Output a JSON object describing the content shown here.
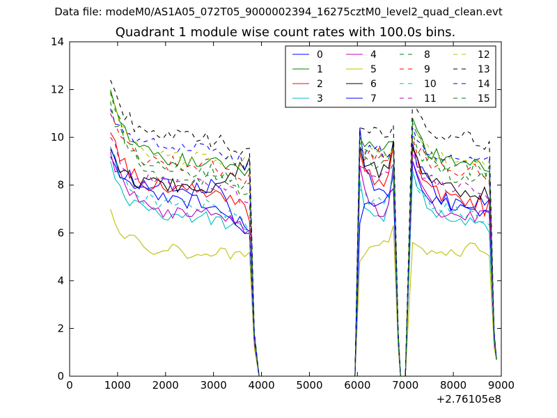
{
  "figure": {
    "suptitle": "Data file: modeM0/AS1A05_072T05_9000002394_16275cztM0_level2_quad_clean.evt"
  },
  "chart_data": {
    "type": "line",
    "title": "Quadrant 1 module wise count rates with 100.0s bins.",
    "xlabel": "",
    "ylabel": "",
    "x_offset_label": "+2.76105e8",
    "xlim": [
      0,
      9000
    ],
    "ylim": [
      0,
      14
    ],
    "xticks": [
      0,
      1000,
      2000,
      3000,
      4000,
      5000,
      6000,
      7000,
      8000,
      9000
    ],
    "yticks": [
      0,
      2,
      4,
      6,
      8,
      10,
      12,
      14
    ],
    "grid": false,
    "legend_position": "top-right",
    "legend_columns": 4,
    "segments": [
      {
        "name": "block1",
        "x_start": 850,
        "x_end": 3750,
        "step": 100,
        "t1": 3850,
        "t2": 3950,
        "x_after": [
          4000,
          4500,
          5000,
          5500,
          5950
        ]
      },
      {
        "name": "block2",
        "x_start": 6050,
        "x_end": 6750,
        "step": 100,
        "t1": 6850,
        "t2": 6900,
        "x_after": [
          6900,
          7000
        ]
      },
      {
        "name": "block3",
        "x_start": 7150,
        "x_end": 8750,
        "step": 100,
        "t1": 8850,
        "t2": 8900,
        "x_after": []
      }
    ],
    "series": [
      {
        "name": "0",
        "color": "#0000ff",
        "dash": "solid",
        "start": [
          9.2,
          10.4,
          9.8
        ],
        "level": [
          7.9,
          7.6,
          7.2
        ],
        "end": [
          5.8,
          8.2,
          7.4
        ],
        "jitter": 0.35,
        "t1": 1.5,
        "t2": 0.7
      },
      {
        "name": "1",
        "color": "#008000",
        "dash": "solid",
        "start": [
          12.0,
          10.0,
          10.8
        ],
        "level": [
          9.0,
          9.4,
          9.0
        ],
        "end": [
          8.6,
          9.9,
          8.6
        ],
        "jitter": 0.35,
        "t1": 1.7,
        "t2": 0.7
      },
      {
        "name": "2",
        "color": "#ff0000",
        "dash": "solid",
        "start": [
          10.2,
          9.4,
          9.5
        ],
        "level": [
          7.8,
          8.0,
          7.3
        ],
        "end": [
          6.8,
          9.6,
          7.0
        ],
        "jitter": 0.4,
        "t1": 1.6,
        "t2": 0.7
      },
      {
        "name": "3",
        "color": "#00bfbf",
        "dash": "solid",
        "start": [
          9.0,
          8.2,
          8.6
        ],
        "level": [
          6.6,
          6.7,
          6.5
        ],
        "end": [
          6.1,
          8.6,
          6.2
        ],
        "jitter": 0.3,
        "t1": 1.4,
        "t2": 0.7
      },
      {
        "name": "4",
        "color": "#bf00bf",
        "dash": "solid",
        "start": [
          9.4,
          8.8,
          9.0
        ],
        "level": [
          6.8,
          6.9,
          6.7
        ],
        "end": [
          6.0,
          8.9,
          6.6
        ],
        "jitter": 0.3,
        "t1": 1.4,
        "t2": 0.7
      },
      {
        "name": "5",
        "color": "#bfbf00",
        "dash": "solid",
        "start": [
          7.0,
          4.8,
          5.6
        ],
        "level": [
          5.2,
          5.6,
          5.3
        ],
        "end": [
          4.9,
          6.4,
          5.3
        ],
        "jitter": 0.3,
        "t1": 1.2,
        "t2": 0.7
      },
      {
        "name": "6",
        "color": "#000000",
        "dash": "solid",
        "start": [
          9.5,
          9.6,
          9.6
        ],
        "level": [
          7.9,
          8.6,
          7.8
        ],
        "end": [
          9.0,
          10.0,
          7.6
        ],
        "jitter": 0.35,
        "t1": 1.6,
        "t2": 0.7
      },
      {
        "name": "7",
        "color": "#0000ff",
        "dash": "solid",
        "start": [
          9.6,
          6.4,
          9.0
        ],
        "level": [
          7.3,
          7.4,
          7.1
        ],
        "end": [
          5.8,
          8.0,
          6.6
        ],
        "jitter": 0.3,
        "t1": 1.5,
        "t2": 0.7
      },
      {
        "name": "8",
        "color": "#008000",
        "dash": "dashed",
        "start": [
          11.5,
          9.8,
          10.2
        ],
        "level": [
          8.3,
          8.8,
          8.4
        ],
        "end": [
          7.6,
          9.4,
          8.1
        ],
        "jitter": 0.35,
        "t1": 1.7,
        "t2": 0.7
      },
      {
        "name": "9",
        "color": "#ff0000",
        "dash": "dashed",
        "start": [
          11.0,
          9.2,
          10.0
        ],
        "level": [
          8.8,
          9.2,
          8.6
        ],
        "end": [
          8.2,
          9.7,
          8.4
        ],
        "jitter": 0.35,
        "t1": 1.7,
        "t2": 0.7
      },
      {
        "name": "10",
        "color": "#00bfbf",
        "dash": "dashed",
        "start": [
          9.6,
          7.8,
          8.6
        ],
        "level": [
          7.1,
          7.3,
          6.8
        ],
        "end": [
          6.3,
          8.4,
          6.4
        ],
        "jitter": 0.3,
        "t1": 1.5,
        "t2": 0.7
      },
      {
        "name": "11",
        "color": "#bf00bf",
        "dash": "dashed",
        "start": [
          10.0,
          8.8,
          9.4
        ],
        "level": [
          8.0,
          8.4,
          7.8
        ],
        "end": [
          7.3,
          9.2,
          7.6
        ],
        "jitter": 0.3,
        "t1": 1.6,
        "t2": 0.7
      },
      {
        "name": "12",
        "color": "#bfbf00",
        "dash": "dashed",
        "start": [
          11.8,
          9.6,
          10.4
        ],
        "level": [
          9.1,
          9.4,
          9.0
        ],
        "end": [
          9.0,
          9.6,
          8.7
        ],
        "jitter": 0.3,
        "t1": 1.8,
        "t2": 0.7
      },
      {
        "name": "13",
        "color": "#000000",
        "dash": "dashed",
        "start": [
          12.4,
          10.4,
          11.6
        ],
        "level": [
          9.9,
          10.3,
          9.9
        ],
        "end": [
          9.5,
          10.2,
          9.7
        ],
        "jitter": 0.35,
        "t1": 1.9,
        "t2": 0.7
      },
      {
        "name": "14",
        "color": "#0000ff",
        "dash": "dashed",
        "start": [
          11.2,
          9.6,
          10.4
        ],
        "level": [
          9.6,
          9.4,
          8.9
        ],
        "end": [
          8.8,
          9.8,
          8.9
        ],
        "jitter": 0.3,
        "t1": 1.8,
        "t2": 0.7
      },
      {
        "name": "15",
        "color": "#008000",
        "dash": "dashed",
        "start": [
          11.9,
          9.6,
          10.6
        ],
        "level": [
          8.6,
          9.2,
          8.7
        ],
        "end": [
          7.8,
          9.6,
          8.5
        ],
        "jitter": 0.35,
        "t1": 1.8,
        "t2": 0.7
      }
    ]
  }
}
